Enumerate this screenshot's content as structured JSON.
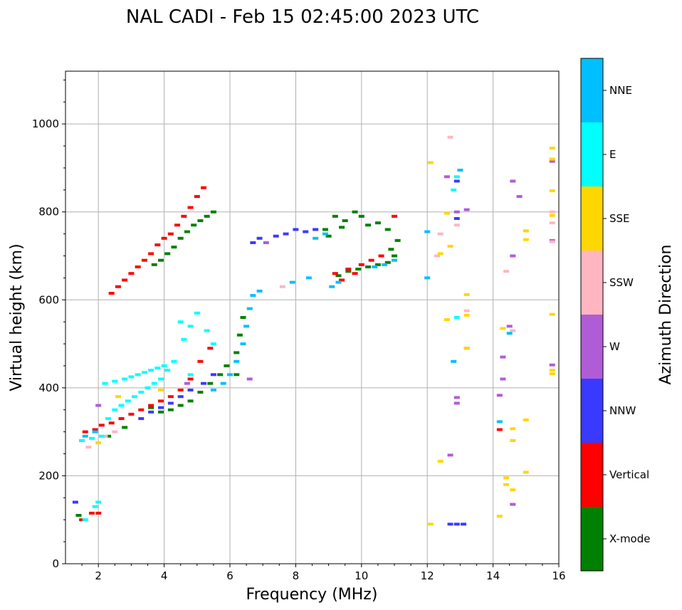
{
  "chart_data": {
    "type": "scatter",
    "title": "NAL CADI - Feb 15 02:45:00 2023 UTC",
    "xlabel": "Frequency (MHz)",
    "ylabel": "Virtual height (km)",
    "xlim": [
      1,
      16
    ],
    "ylim": [
      0,
      1120
    ],
    "xticks": [
      2,
      4,
      6,
      8,
      10,
      12,
      14,
      16
    ],
    "yticks": [
      0,
      200,
      400,
      600,
      800,
      1000
    ],
    "xtick_labels": [
      "2",
      "4",
      "6",
      "8",
      "10",
      "12",
      "14",
      "16"
    ],
    "ytick_labels": [
      "0",
      "200",
      "400",
      "600",
      "800",
      "1000"
    ],
    "grid": true,
    "colorbar": {
      "label": "Azimuth Direction",
      "categories": [
        {
          "name": "X-mode",
          "color": "#008000"
        },
        {
          "name": "Vertical",
          "color": "#ff0000"
        },
        {
          "name": "NNW",
          "color": "#3a3aff"
        },
        {
          "name": "W",
          "color": "#b05cd6"
        },
        {
          "name": "SSW",
          "color": "#ffb6c1"
        },
        {
          "name": "SSE",
          "color": "#ffd700"
        },
        {
          "name": "E",
          "color": "#00ffff"
        },
        {
          "name": "NNE",
          "color": "#00bfff"
        }
      ]
    },
    "series": [
      {
        "name": "X-mode",
        "points": [
          [
            3.9,
            690
          ],
          [
            4.1,
            705
          ],
          [
            4.3,
            720
          ],
          [
            4.5,
            740
          ],
          [
            4.7,
            755
          ],
          [
            4.9,
            770
          ],
          [
            5.1,
            780
          ],
          [
            5.3,
            790
          ],
          [
            5.5,
            800
          ],
          [
            3.7,
            680
          ],
          [
            3.6,
            355
          ],
          [
            3.9,
            345
          ],
          [
            4.2,
            350
          ],
          [
            4.5,
            360
          ],
          [
            4.8,
            370
          ],
          [
            5.1,
            390
          ],
          [
            5.4,
            410
          ],
          [
            5.7,
            430
          ],
          [
            5.9,
            450
          ],
          [
            6.2,
            480
          ],
          [
            6.3,
            520
          ],
          [
            6.4,
            560
          ],
          [
            6.2,
            430
          ],
          [
            8.9,
            760
          ],
          [
            9.2,
            790
          ],
          [
            9.5,
            780
          ],
          [
            9.8,
            800
          ],
          [
            10.0,
            790
          ],
          [
            10.2,
            770
          ],
          [
            10.5,
            775
          ],
          [
            10.8,
            760
          ],
          [
            9.0,
            745
          ],
          [
            9.4,
            765
          ],
          [
            9.3,
            655
          ],
          [
            9.6,
            665
          ],
          [
            9.9,
            670
          ],
          [
            10.2,
            675
          ],
          [
            10.5,
            680
          ],
          [
            10.8,
            685
          ],
          [
            11.0,
            700
          ],
          [
            10.9,
            715
          ],
          [
            11.1,
            735
          ],
          [
            1.4,
            110
          ],
          [
            2.3,
            290
          ],
          [
            2.8,
            310
          ]
        ]
      },
      {
        "name": "Vertical",
        "points": [
          [
            2.4,
            615
          ],
          [
            2.6,
            630
          ],
          [
            2.8,
            645
          ],
          [
            3.0,
            660
          ],
          [
            3.2,
            675
          ],
          [
            3.4,
            690
          ],
          [
            3.6,
            705
          ],
          [
            3.8,
            725
          ],
          [
            4.0,
            740
          ],
          [
            4.2,
            750
          ],
          [
            4.4,
            770
          ],
          [
            4.6,
            790
          ],
          [
            4.8,
            810
          ],
          [
            5.0,
            835
          ],
          [
            5.2,
            855
          ],
          [
            1.6,
            300
          ],
          [
            1.9,
            305
          ],
          [
            2.1,
            315
          ],
          [
            2.4,
            320
          ],
          [
            2.7,
            330
          ],
          [
            3.0,
            340
          ],
          [
            3.3,
            350
          ],
          [
            3.6,
            360
          ],
          [
            3.9,
            370
          ],
          [
            4.2,
            380
          ],
          [
            4.5,
            395
          ],
          [
            4.8,
            420
          ],
          [
            5.1,
            460
          ],
          [
            5.4,
            490
          ],
          [
            9.2,
            660
          ],
          [
            9.4,
            645
          ],
          [
            9.6,
            670
          ],
          [
            9.8,
            660
          ],
          [
            10.0,
            680
          ],
          [
            10.3,
            690
          ],
          [
            10.6,
            700
          ],
          [
            11.0,
            790
          ],
          [
            1.5,
            100
          ],
          [
            1.8,
            115
          ],
          [
            2.0,
            115
          ],
          [
            14.2,
            305
          ]
        ]
      },
      {
        "name": "NNW",
        "points": [
          [
            3.3,
            330
          ],
          [
            3.6,
            345
          ],
          [
            3.9,
            355
          ],
          [
            4.2,
            365
          ],
          [
            4.5,
            380
          ],
          [
            4.8,
            395
          ],
          [
            5.2,
            410
          ],
          [
            5.5,
            430
          ],
          [
            6.7,
            730
          ],
          [
            6.9,
            740
          ],
          [
            7.4,
            745
          ],
          [
            7.7,
            750
          ],
          [
            8.0,
            760
          ],
          [
            8.3,
            755
          ],
          [
            8.6,
            760
          ],
          [
            12.7,
            90
          ],
          [
            12.9,
            90
          ],
          [
            13.1,
            90
          ],
          [
            12.9,
            870
          ],
          [
            12.9,
            785
          ],
          [
            1.3,
            140
          ],
          [
            1.5,
            280
          ]
        ]
      },
      {
        "name": "W",
        "points": [
          [
            7.1,
            730
          ],
          [
            6.6,
            420
          ],
          [
            12.6,
            880
          ],
          [
            12.9,
            800
          ],
          [
            13.2,
            805
          ],
          [
            12.7,
            247
          ],
          [
            12.9,
            378
          ],
          [
            12.9,
            365
          ],
          [
            13.2,
            490
          ],
          [
            14.3,
            470
          ],
          [
            14.3,
            420
          ],
          [
            14.2,
            383
          ],
          [
            14.6,
            700
          ],
          [
            14.6,
            870
          ],
          [
            14.8,
            835
          ],
          [
            14.6,
            135
          ],
          [
            15.8,
            915
          ],
          [
            15.8,
            735
          ],
          [
            15.8,
            452
          ],
          [
            14.5,
            540
          ],
          [
            2.0,
            360
          ],
          [
            4.7,
            410
          ]
        ]
      },
      {
        "name": "SSW",
        "points": [
          [
            12.7,
            970
          ],
          [
            12.9,
            770
          ],
          [
            12.3,
            700
          ],
          [
            12.4,
            750
          ],
          [
            13.2,
            575
          ],
          [
            14.4,
            665
          ],
          [
            14.6,
            530
          ],
          [
            15.8,
            775
          ],
          [
            15.8,
            732
          ],
          [
            15.8,
            800
          ],
          [
            7.6,
            630
          ],
          [
            1.7,
            265
          ],
          [
            2.2,
            290
          ],
          [
            2.5,
            300
          ]
        ]
      },
      {
        "name": "SSE",
        "points": [
          [
            12.1,
            912
          ],
          [
            12.6,
            797
          ],
          [
            12.7,
            722
          ],
          [
            12.4,
            705
          ],
          [
            12.6,
            555
          ],
          [
            13.2,
            612
          ],
          [
            13.2,
            565
          ],
          [
            13.2,
            490
          ],
          [
            12.4,
            233
          ],
          [
            14.3,
            535
          ],
          [
            14.6,
            307
          ],
          [
            14.6,
            280
          ],
          [
            14.6,
            168
          ],
          [
            14.4,
            195
          ],
          [
            14.4,
            180
          ],
          [
            15.0,
            327
          ],
          [
            15.0,
            757
          ],
          [
            15.0,
            737
          ],
          [
            15.0,
            208
          ],
          [
            14.2,
            108
          ],
          [
            12.1,
            90
          ],
          [
            15.8,
            945
          ],
          [
            15.8,
            920
          ],
          [
            15.8,
            848
          ],
          [
            15.8,
            792
          ],
          [
            15.8,
            567
          ],
          [
            15.8,
            440
          ],
          [
            15.8,
            432
          ],
          [
            2.0,
            275
          ],
          [
            2.6,
            380
          ],
          [
            3.9,
            395
          ]
        ]
      },
      {
        "name": "E",
        "points": [
          [
            1.5,
            280
          ],
          [
            1.8,
            285
          ],
          [
            2.1,
            290
          ],
          [
            2.3,
            330
          ],
          [
            2.5,
            350
          ],
          [
            2.7,
            360
          ],
          [
            2.9,
            370
          ],
          [
            3.1,
            380
          ],
          [
            3.3,
            390
          ],
          [
            3.5,
            400
          ],
          [
            3.7,
            410
          ],
          [
            3.9,
            420
          ],
          [
            4.1,
            440
          ],
          [
            4.3,
            460
          ],
          [
            2.2,
            410
          ],
          [
            2.5,
            415
          ],
          [
            2.8,
            420
          ],
          [
            3.0,
            425
          ],
          [
            3.2,
            430
          ],
          [
            3.4,
            435
          ],
          [
            3.6,
            440
          ],
          [
            3.8,
            445
          ],
          [
            4.0,
            450
          ],
          [
            4.6,
            510
          ],
          [
            4.8,
            540
          ],
          [
            5.0,
            570
          ],
          [
            5.3,
            530
          ],
          [
            5.5,
            500
          ],
          [
            4.5,
            550
          ],
          [
            4.8,
            430
          ],
          [
            12.9,
            880
          ],
          [
            12.9,
            560
          ],
          [
            12.8,
            850
          ],
          [
            1.6,
            100
          ],
          [
            1.9,
            130
          ],
          [
            2.0,
            140
          ]
        ]
      },
      {
        "name": "NNE",
        "points": [
          [
            5.5,
            395
          ],
          [
            5.8,
            410
          ],
          [
            6.0,
            430
          ],
          [
            6.2,
            460
          ],
          [
            6.4,
            500
          ],
          [
            6.5,
            540
          ],
          [
            6.6,
            580
          ],
          [
            6.7,
            610
          ],
          [
            6.9,
            620
          ],
          [
            7.9,
            640
          ],
          [
            8.4,
            650
          ],
          [
            8.6,
            740
          ],
          [
            8.9,
            750
          ],
          [
            9.1,
            630
          ],
          [
            9.3,
            640
          ],
          [
            10.4,
            675
          ],
          [
            10.7,
            680
          ],
          [
            11.0,
            690
          ],
          [
            12.0,
            755
          ],
          [
            12.0,
            650
          ],
          [
            12.8,
            460
          ],
          [
            14.2,
            323
          ],
          [
            14.5,
            524
          ],
          [
            13.0,
            895
          ],
          [
            1.6,
            290
          ],
          [
            1.9,
            300
          ]
        ]
      }
    ]
  }
}
